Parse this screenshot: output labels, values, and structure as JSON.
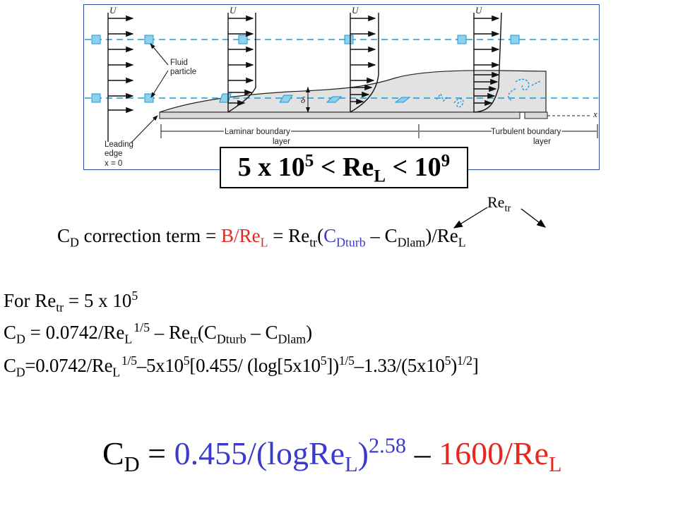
{
  "diagram": {
    "u_labels": [
      "U",
      "U",
      "U",
      "U"
    ],
    "fluid_particle": [
      "Fluid",
      "particle"
    ],
    "leading_edge": [
      "Leading",
      "edge",
      "x = 0"
    ],
    "laminar_layer": [
      "Laminar boundary",
      "layer"
    ],
    "turbulent_layer": [
      "Turbulent boundary",
      "layer"
    ],
    "delta": "δ",
    "x_axis": "x"
  },
  "range": {
    "a": "5 x 10",
    "a_exp": "5",
    "lt": " < Re",
    "sub": "L",
    "b": " < 10",
    "b_exp": "9"
  },
  "retr_note": {
    "base": "Re",
    "sub": "tr"
  },
  "correction": {
    "cd": "C",
    "cd_sub": "D",
    "text1": " correction  term = ",
    "b_part": "B/Re",
    "b_sub": "L",
    "eq": " = Re",
    "tr_sub": "tr",
    "open": "(",
    "cdturb": "C",
    "cdturb_sub": "Dturb",
    "minus": " – C",
    "dlam_sub": "Dlam",
    "close": ")/Re",
    "l_sub": "L"
  },
  "line1": {
    "text": "For Re",
    "sub": "tr",
    "rest": " = 5 x 10",
    "exp": "5"
  },
  "line2": {
    "c": "C",
    "c_sub": "D",
    "t1": " = 0.0742/Re",
    "l_sub": "L",
    "exp": "1/5",
    "t2": " – Re",
    "tr_sub": "tr",
    "t3": "(C",
    "dturb": "Dturb",
    "t4": " – C",
    "dlam": "Dlam",
    "t5": ")"
  },
  "line3": {
    "c": "C",
    "c_sub": "D",
    "t1": "=0.0742/Re",
    "l_sub": "L",
    "exp1": "1/5",
    "t2": "–5x10",
    "exp2": "5",
    "t3": "[0.455/ (log[5x10",
    "exp3": "5",
    "t4": "])",
    "exp4": "1/5",
    "t5": "–1.33/(5x10",
    "exp5": "5",
    "t6": ")",
    "exp6": "1/2",
    "t7": "]"
  },
  "final": {
    "c": "C",
    "c_sub": "D",
    "eq": " = ",
    "blue": "0.455/(logRe",
    "blue_sub": "L",
    "close": ")",
    "exp": "2.58",
    "minus": " – ",
    "red": "1600/Re",
    "red_sub": "L"
  },
  "colors": {
    "red": "#e8271e",
    "blue": "#3a3acc",
    "frame": "#2e4fa8",
    "dash": "#1b9ad6",
    "layer": "#e2e2e2"
  }
}
